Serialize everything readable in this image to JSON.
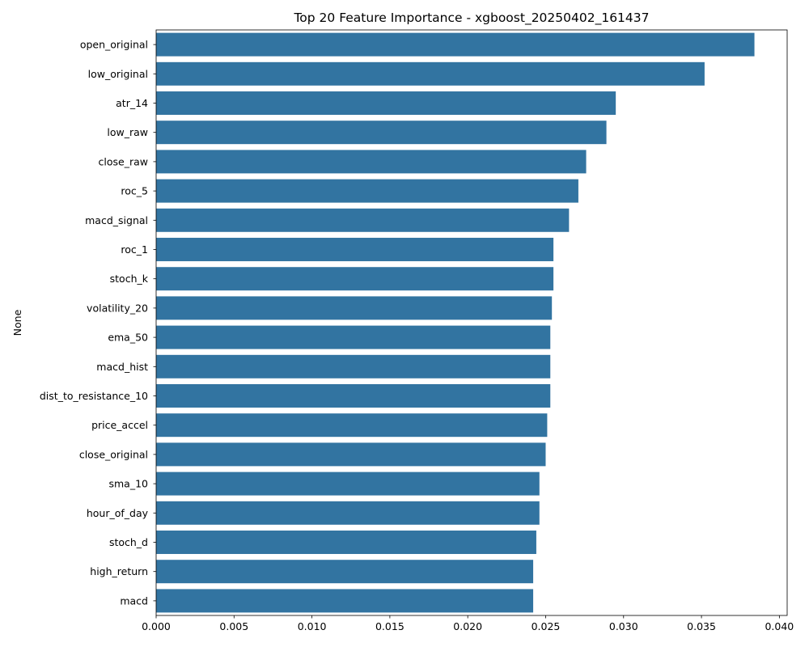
{
  "chart_data": {
    "type": "bar",
    "orientation": "horizontal",
    "title": "Top 20 Feature Importance - xgboost_20250402_161437",
    "xlabel": "",
    "ylabel": "None",
    "xlim": [
      0,
      0.0405
    ],
    "x_ticks": [
      "0.000",
      "0.005",
      "0.010",
      "0.015",
      "0.020",
      "0.025",
      "0.030",
      "0.035",
      "0.040"
    ],
    "x_tick_values": [
      0,
      0.005,
      0.01,
      0.015,
      0.02,
      0.025,
      0.03,
      0.035,
      0.04
    ],
    "grid": false,
    "legend": "none",
    "bar_color": "#3274a1",
    "categories": [
      "open_original",
      "low_original",
      "atr_14",
      "low_raw",
      "close_raw",
      "roc_5",
      "macd_signal",
      "roc_1",
      "stoch_k",
      "volatility_20",
      "ema_50",
      "macd_hist",
      "dist_to_resistance_10",
      "price_accel",
      "close_original",
      "sma_10",
      "hour_of_day",
      "stoch_d",
      "high_return",
      "macd"
    ],
    "values": [
      0.0384,
      0.0352,
      0.0295,
      0.0289,
      0.0276,
      0.0271,
      0.0265,
      0.0255,
      0.0255,
      0.0254,
      0.0253,
      0.0253,
      0.0253,
      0.0251,
      0.025,
      0.0246,
      0.0246,
      0.0244,
      0.0242,
      0.0242
    ]
  }
}
